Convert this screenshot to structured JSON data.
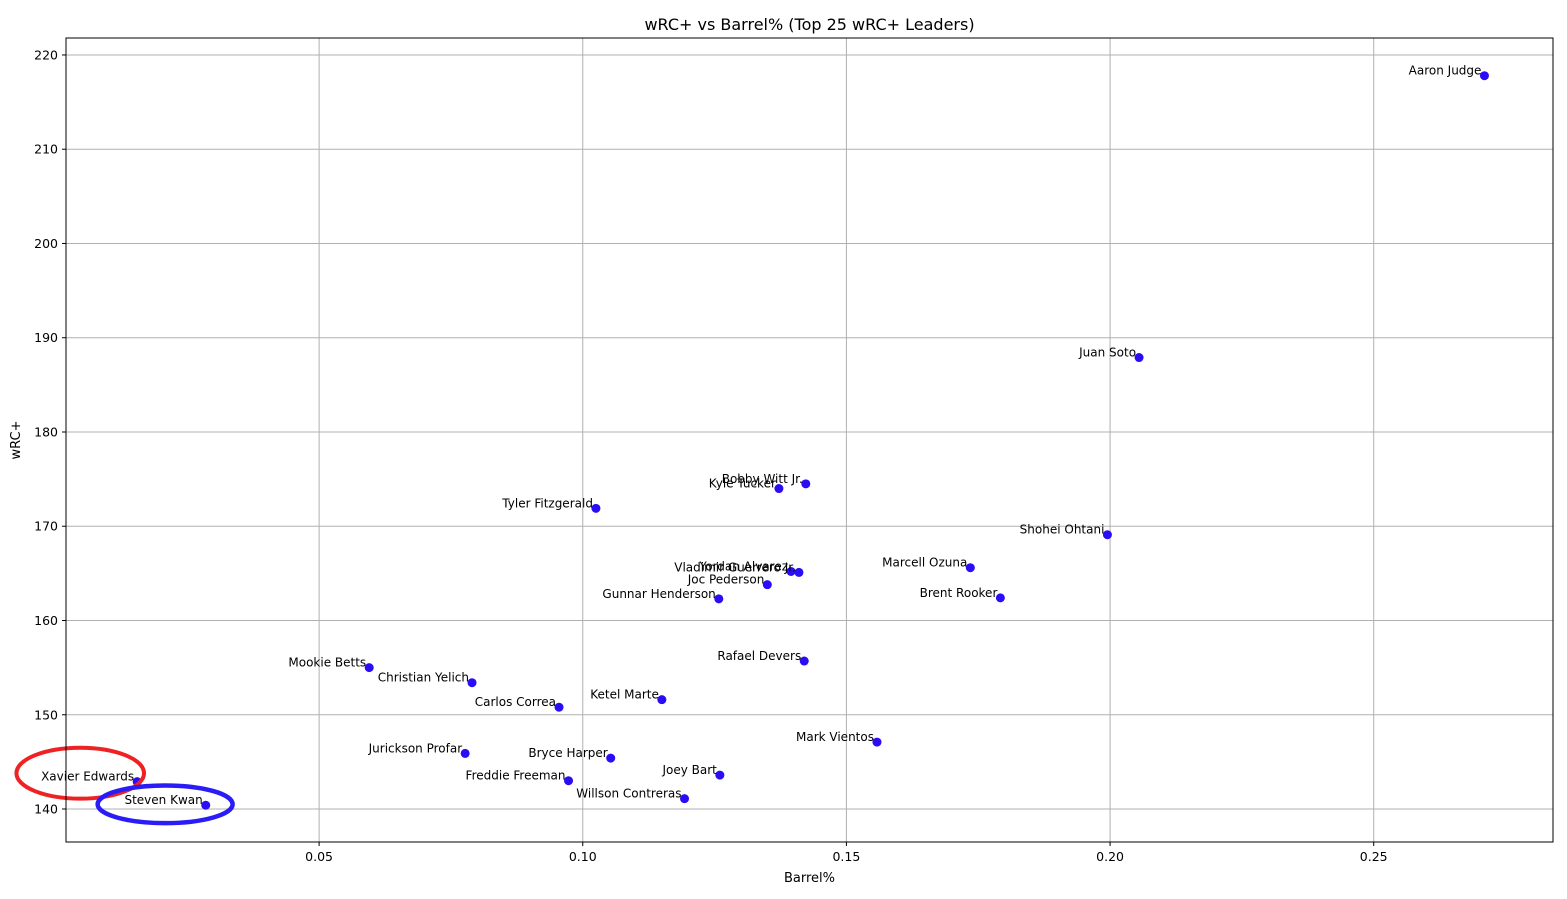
{
  "chart_data": {
    "type": "scatter",
    "title": "wRC+ vs Barrel% (Top 25 wRC+ Leaders)",
    "xlabel": "Barrel%",
    "ylabel": "wRC+",
    "xlim": [
      0.002,
      0.284
    ],
    "ylim": [
      136.5,
      221.8
    ],
    "xticks": [
      0.05,
      0.1,
      0.15,
      0.2,
      0.25
    ],
    "xtick_labels": [
      "0.05",
      "0.10",
      "0.15",
      "0.20",
      "0.25"
    ],
    "yticks": [
      140,
      150,
      160,
      170,
      180,
      190,
      200,
      210,
      220
    ],
    "ytick_labels": [
      "140",
      "150",
      "160",
      "170",
      "180",
      "190",
      "200",
      "210",
      "220"
    ],
    "grid": true,
    "marker_color": "#2a0cf5",
    "points": [
      {
        "label": "Aaron Judge",
        "x": 0.271,
        "y": 217.8
      },
      {
        "label": "Juan Soto",
        "x": 0.2055,
        "y": 187.9
      },
      {
        "label": "Bobby Witt Jr.",
        "x": 0.1423,
        "y": 174.5
      },
      {
        "label": "Kyle Tucker",
        "x": 0.1372,
        "y": 174.0
      },
      {
        "label": "Tyler Fitzgerald",
        "x": 0.1025,
        "y": 171.9
      },
      {
        "label": "Shohei Ohtani",
        "x": 0.1995,
        "y": 169.1
      },
      {
        "label": "Marcell Ozuna",
        "x": 0.1735,
        "y": 165.6
      },
      {
        "label": "Yordan Alvarez",
        "x": 0.1395,
        "y": 165.2
      },
      {
        "label": "Vladimir Guerrero Jr.",
        "x": 0.141,
        "y": 165.1
      },
      {
        "label": "Joc Pederson",
        "x": 0.135,
        "y": 163.8
      },
      {
        "label": "Gunnar Henderson",
        "x": 0.1258,
        "y": 162.3
      },
      {
        "label": "Brent Rooker",
        "x": 0.1792,
        "y": 162.4
      },
      {
        "label": "Rafael Devers",
        "x": 0.142,
        "y": 155.7
      },
      {
        "label": "Mookie Betts",
        "x": 0.0595,
        "y": 155.0
      },
      {
        "label": "Christian Yelich",
        "x": 0.079,
        "y": 153.4
      },
      {
        "label": "Ketel Marte",
        "x": 0.115,
        "y": 151.6
      },
      {
        "label": "Carlos Correa",
        "x": 0.0955,
        "y": 150.8
      },
      {
        "label": "Mark Vientos",
        "x": 0.1558,
        "y": 147.1
      },
      {
        "label": "Jurickson Profar",
        "x": 0.0777,
        "y": 145.9
      },
      {
        "label": "Bryce Harper",
        "x": 0.1053,
        "y": 145.4
      },
      {
        "label": "Joey Bart",
        "x": 0.126,
        "y": 143.6
      },
      {
        "label": "Freddie Freeman",
        "x": 0.0973,
        "y": 143.0
      },
      {
        "label": "Xavier Edwards",
        "x": 0.0155,
        "y": 142.9
      },
      {
        "label": "Willson Contreras",
        "x": 0.1193,
        "y": 141.1
      },
      {
        "label": "Steven Kwan",
        "x": 0.0285,
        "y": 140.4
      }
    ],
    "annotations": [
      {
        "shape": "ellipse",
        "color": "#ee2222",
        "center_x": 0.0047,
        "center_y": 143.8,
        "radius_x": 0.0121,
        "radius_y": 2.7,
        "stroke_width": 4
      },
      {
        "shape": "ellipse",
        "color": "#2a1cf5",
        "center_x": 0.0208,
        "center_y": 140.5,
        "radius_x": 0.0128,
        "radius_y": 2.0,
        "stroke_width": 4.5
      }
    ]
  }
}
